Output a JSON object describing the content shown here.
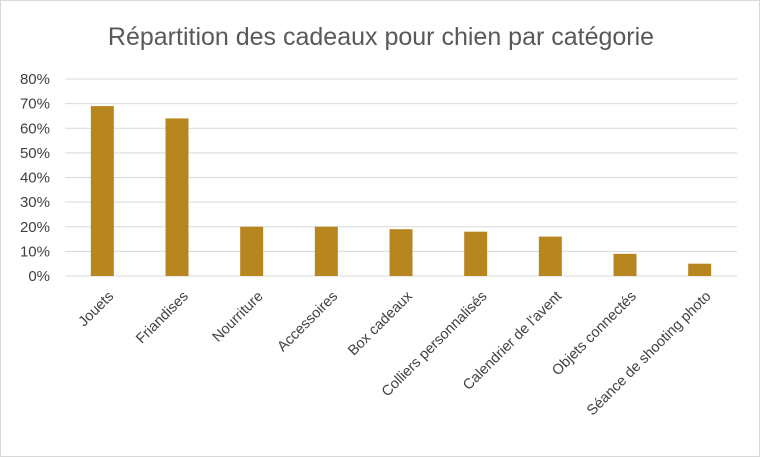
{
  "chart_data": {
    "type": "bar",
    "title": "Répartition des cadeaux pour chien par catégorie",
    "xlabel": "",
    "ylabel": "",
    "categories": [
      "Jouets",
      "Friandises",
      "Nourriture",
      "Accessoires",
      "Box cadeaux",
      "Colliers personnalisés",
      "Calendrier de l'avent",
      "Objets connectés",
      "Séance de shooting photo"
    ],
    "values": [
      69,
      64,
      20,
      20,
      19,
      18,
      16,
      9,
      5
    ],
    "ylim": [
      0,
      80
    ],
    "yticks": [
      0,
      10,
      20,
      30,
      40,
      50,
      60,
      70,
      80
    ],
    "ytick_labels": [
      "0%",
      "10%",
      "20%",
      "30%",
      "40%",
      "50%",
      "60%",
      "70%",
      "80%"
    ],
    "grid": true,
    "legend": "none",
    "colors": {
      "bar": "#B8861F",
      "grid": "#d9d9d9",
      "text": "#404040",
      "title": "#595959"
    }
  }
}
